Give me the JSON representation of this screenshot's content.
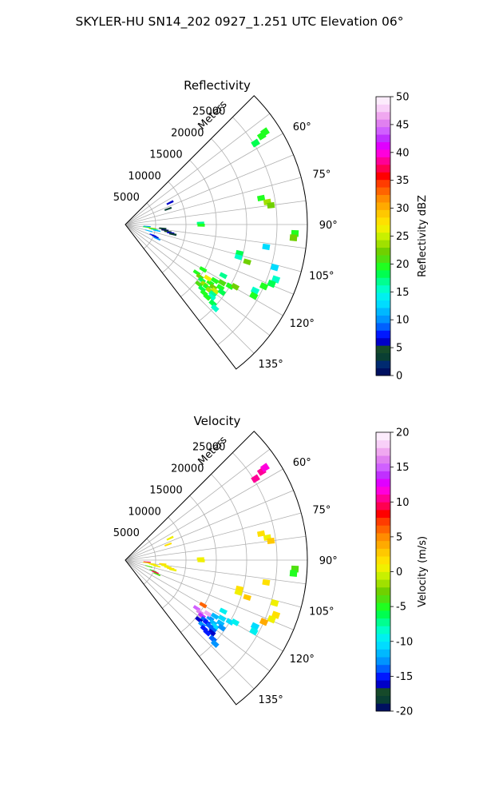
{
  "figure": {
    "suptitle": "SKYLER-HU  SN14_202  0927_1.251 UTC Elevation 06°"
  },
  "chart_data": [
    {
      "type": "heatmap",
      "subtype": "polar-sector-radar",
      "title": "Reflectivity",
      "range_label": "Meters",
      "range_ticks": [
        5000,
        10000,
        15000,
        20000,
        25000
      ],
      "range_max": 30000,
      "azimuth_range": [
        45,
        142.5
      ],
      "azimuth_ticks": [
        60,
        75,
        90,
        105,
        120,
        135
      ],
      "azimuth_tick_labels": [
        "60°",
        "75°",
        "90°",
        "105°",
        "120°",
        "135°"
      ],
      "grid": true,
      "colorbar": {
        "label": "Reflectivity dBZ",
        "min": 0,
        "max": 50,
        "ticks": [
          0,
          5,
          10,
          15,
          20,
          25,
          30,
          35,
          40,
          45,
          50
        ],
        "colors": [
          "#001060",
          "#002a70",
          "#0a3f33",
          "#164a2a",
          "#0000c8",
          "#0018ff",
          "#0060ff",
          "#0094ff",
          "#00b8ff",
          "#00dcff",
          "#00f0f0",
          "#00ffc8",
          "#00ff90",
          "#00ff50",
          "#20ff20",
          "#50e010",
          "#70d000",
          "#a0e000",
          "#c8f000",
          "#f0f000",
          "#ffe000",
          "#ffc800",
          "#ffaa00",
          "#ff8c00",
          "#ff6400",
          "#ff3c00",
          "#ff0000",
          "#ff0050",
          "#ff0096",
          "#ff00dc",
          "#e000ff",
          "#c030ff",
          "#d060ff",
          "#e080f0",
          "#f0a8f0",
          "#f8d0f8",
          "#fcecfc"
        ]
      },
      "cells": [
        {
          "az": 58,
          "r": 25300,
          "v": 18
        },
        {
          "az": 57,
          "r": 26800,
          "v": 20
        },
        {
          "az": 56.5,
          "r": 27600,
          "v": 19
        },
        {
          "az": 79,
          "r": 22800,
          "v": 20
        },
        {
          "az": 81,
          "r": 23700,
          "v": 24
        },
        {
          "az": 82.5,
          "r": 24200,
          "v": 22
        },
        {
          "az": 64,
          "r": 8200,
          "v": 6
        },
        {
          "az": 70,
          "r": 7500,
          "v": 3
        },
        {
          "az": 89,
          "r": 12400,
          "v": 17
        },
        {
          "az": 90.5,
          "r": 12500,
          "v": 20
        },
        {
          "az": 93,
          "r": 28000,
          "v": 19
        },
        {
          "az": 94.5,
          "r": 27800,
          "v": 22
        },
        {
          "az": 95,
          "r": 3600,
          "v": 10
        },
        {
          "az": 97,
          "r": 3500,
          "v": 20
        },
        {
          "az": 98,
          "r": 4400,
          "v": 24
        },
        {
          "az": 99,
          "r": 4600,
          "v": 22
        },
        {
          "az": 100,
          "r": 4900,
          "v": 17
        },
        {
          "az": 101,
          "r": 5300,
          "v": 12
        },
        {
          "az": 96,
          "r": 6200,
          "v": 3
        },
        {
          "az": 98,
          "r": 6600,
          "v": 1
        },
        {
          "az": 99.5,
          "r": 7100,
          "v": 5
        },
        {
          "az": 100.5,
          "r": 7600,
          "v": 6
        },
        {
          "az": 101.5,
          "r": 8000,
          "v": 4
        },
        {
          "az": 105,
          "r": 4000,
          "v": 12
        },
        {
          "az": 111,
          "r": 4900,
          "v": 8
        },
        {
          "az": 112,
          "r": 5300,
          "v": 6
        },
        {
          "az": 114,
          "r": 5700,
          "v": 10
        },
        {
          "az": 104,
          "r": 19400,
          "v": 18
        },
        {
          "az": 106,
          "r": 19400,
          "v": 15
        },
        {
          "az": 107,
          "r": 21000,
          "v": 22
        },
        {
          "az": 99,
          "r": 23500,
          "v": 13
        },
        {
          "az": 106,
          "r": 25600,
          "v": 13
        },
        {
          "az": 110,
          "r": 26400,
          "v": 16
        },
        {
          "az": 112,
          "r": 26000,
          "v": 18
        },
        {
          "az": 114,
          "r": 25000,
          "v": 20
        },
        {
          "az": 117,
          "r": 24000,
          "v": 16
        },
        {
          "az": 119,
          "r": 24200,
          "v": 20
        },
        {
          "az": 120,
          "r": 14800,
          "v": 20
        },
        {
          "az": 117.5,
          "r": 18200,
          "v": 17
        },
        {
          "az": 124,
          "r": 14200,
          "v": 20
        },
        {
          "az": 125,
          "r": 15000,
          "v": 22
        },
        {
          "az": 126,
          "r": 15600,
          "v": 18
        },
        {
          "az": 127,
          "r": 16300,
          "v": 24
        },
        {
          "az": 124.5,
          "r": 17000,
          "v": 20
        },
        {
          "az": 125.5,
          "r": 17800,
          "v": 22
        },
        {
          "az": 126.5,
          "r": 18400,
          "v": 25
        },
        {
          "az": 127.5,
          "r": 16900,
          "v": 19
        },
        {
          "az": 128,
          "r": 17600,
          "v": 23
        },
        {
          "az": 129,
          "r": 15600,
          "v": 21
        },
        {
          "az": 130,
          "r": 16500,
          "v": 18
        },
        {
          "az": 131,
          "r": 17200,
          "v": 20
        },
        {
          "az": 123,
          "r": 16200,
          "v": 26
        },
        {
          "az": 122,
          "r": 17400,
          "v": 20
        },
        {
          "az": 121,
          "r": 18600,
          "v": 21
        },
        {
          "az": 123.5,
          "r": 18800,
          "v": 19
        },
        {
          "az": 120.5,
          "r": 20000,
          "v": 20
        },
        {
          "az": 119.5,
          "r": 20800,
          "v": 22
        },
        {
          "az": 125,
          "r": 19400,
          "v": 18
        },
        {
          "az": 128.5,
          "r": 18400,
          "v": 17
        },
        {
          "az": 130,
          "r": 18600,
          "v": 15
        },
        {
          "az": 131.5,
          "r": 18000,
          "v": 20
        },
        {
          "az": 132,
          "r": 19400,
          "v": 18
        },
        {
          "az": 133,
          "r": 20200,
          "v": 16
        }
      ]
    },
    {
      "type": "heatmap",
      "subtype": "polar-sector-radar",
      "title": "Velocity",
      "range_label": "Meters",
      "range_ticks": [
        5000,
        10000,
        15000,
        20000,
        25000
      ],
      "range_max": 30000,
      "azimuth_range": [
        45,
        142.5
      ],
      "azimuth_ticks": [
        60,
        75,
        90,
        105,
        120,
        135
      ],
      "azimuth_tick_labels": [
        "60°",
        "75°",
        "90°",
        "105°",
        "120°",
        "135°"
      ],
      "grid": true,
      "colorbar": {
        "label": "Velocity (m/s)",
        "min": -20,
        "max": 20,
        "ticks": [
          -20,
          -15,
          -10,
          -5,
          0,
          5,
          10,
          15,
          20
        ],
        "colors": [
          "#001060",
          "#0a3f33",
          "#164a2a",
          "#0000c8",
          "#0018ff",
          "#0060ff",
          "#0094ff",
          "#00b8ff",
          "#00dcff",
          "#00f0f0",
          "#00ffc8",
          "#00ff90",
          "#00ff50",
          "#20ff20",
          "#50e010",
          "#70d000",
          "#a0e000",
          "#c8f000",
          "#f0f000",
          "#ffe000",
          "#ffc800",
          "#ffaa00",
          "#ff8c00",
          "#ff6400",
          "#ff3c00",
          "#ff0000",
          "#ff0050",
          "#ff0096",
          "#ff00dc",
          "#e000ff",
          "#c030ff",
          "#d060ff",
          "#e080f0",
          "#f0a8f0",
          "#f8d0f8",
          "#fcecfc"
        ]
      },
      "cells": [
        {
          "az": 58,
          "r": 25300,
          "v": 10
        },
        {
          "az": 57,
          "r": 26800,
          "v": 11
        },
        {
          "az": 56.5,
          "r": 27600,
          "v": 12
        },
        {
          "az": 79,
          "r": 22800,
          "v": 2
        },
        {
          "az": 81,
          "r": 23700,
          "v": 1
        },
        {
          "az": 82.5,
          "r": 24200,
          "v": 3
        },
        {
          "az": 64,
          "r": 8200,
          "v": 1
        },
        {
          "az": 70,
          "r": 7500,
          "v": 2
        },
        {
          "az": 89,
          "r": 12400,
          "v": 1
        },
        {
          "az": 90.5,
          "r": 12500,
          "v": 0
        },
        {
          "az": 93,
          "r": 28000,
          "v": -4
        },
        {
          "az": 94.5,
          "r": 27800,
          "v": -5
        },
        {
          "az": 95,
          "r": 3600,
          "v": 9
        },
        {
          "az": 97,
          "r": 3500,
          "v": 1
        },
        {
          "az": 98,
          "r": 4400,
          "v": 1
        },
        {
          "az": 99,
          "r": 4600,
          "v": 2
        },
        {
          "az": 100,
          "r": 4900,
          "v": 0
        },
        {
          "az": 101,
          "r": 5300,
          "v": 1
        },
        {
          "az": 96,
          "r": 6200,
          "v": 2
        },
        {
          "az": 98,
          "r": 6600,
          "v": 1
        },
        {
          "az": 99.5,
          "r": 7100,
          "v": 1
        },
        {
          "az": 100.5,
          "r": 7600,
          "v": 2
        },
        {
          "az": 101.5,
          "r": 8000,
          "v": 1
        },
        {
          "az": 105,
          "r": 4000,
          "v": -4
        },
        {
          "az": 111,
          "r": 4900,
          "v": -5
        },
        {
          "az": 112,
          "r": 5300,
          "v": 9
        },
        {
          "az": 114,
          "r": 5700,
          "v": -4
        },
        {
          "az": 104,
          "r": 19400,
          "v": 2
        },
        {
          "az": 106,
          "r": 19400,
          "v": 1
        },
        {
          "az": 107,
          "r": 21000,
          "v": 3
        },
        {
          "az": 99,
          "r": 23500,
          "v": 2
        },
        {
          "az": 106,
          "r": 25600,
          "v": 1
        },
        {
          "az": 110,
          "r": 26400,
          "v": 2
        },
        {
          "az": 112,
          "r": 26000,
          "v": 1
        },
        {
          "az": 114,
          "r": 25000,
          "v": 4
        },
        {
          "az": 117,
          "r": 24000,
          "v": -11
        },
        {
          "az": 119,
          "r": 24200,
          "v": -10
        },
        {
          "az": 120,
          "r": 14800,
          "v": 6
        },
        {
          "az": 117.5,
          "r": 18200,
          "v": -10
        },
        {
          "az": 124,
          "r": 14200,
          "v": 15
        },
        {
          "az": 125,
          "r": 15000,
          "v": 16
        },
        {
          "az": 126,
          "r": 15600,
          "v": 14
        },
        {
          "az": 127,
          "r": 16300,
          "v": -14
        },
        {
          "az": 124.5,
          "r": 17000,
          "v": -13
        },
        {
          "az": 125.5,
          "r": 17800,
          "v": -12
        },
        {
          "az": 126.5,
          "r": 18400,
          "v": -11
        },
        {
          "az": 127.5,
          "r": 16900,
          "v": -15
        },
        {
          "az": 128,
          "r": 17600,
          "v": -14
        },
        {
          "az": 129,
          "r": 15600,
          "v": -16
        },
        {
          "az": 130,
          "r": 16500,
          "v": -13
        },
        {
          "az": 131,
          "r": 17200,
          "v": -15
        },
        {
          "az": 123,
          "r": 16200,
          "v": 17
        },
        {
          "az": 122,
          "r": 17400,
          "v": -12
        },
        {
          "az": 121,
          "r": 18600,
          "v": -11
        },
        {
          "az": 123.5,
          "r": 18800,
          "v": -12
        },
        {
          "az": 120.5,
          "r": 20000,
          "v": -11
        },
        {
          "az": 119.5,
          "r": 20800,
          "v": -10
        },
        {
          "az": 125,
          "r": 19400,
          "v": -13
        },
        {
          "az": 128.5,
          "r": 18400,
          "v": -14
        },
        {
          "az": 130,
          "r": 18600,
          "v": -16
        },
        {
          "az": 131.5,
          "r": 18000,
          "v": -15
        },
        {
          "az": 132,
          "r": 19400,
          "v": -14
        },
        {
          "az": 133,
          "r": 20200,
          "v": -13
        }
      ]
    }
  ]
}
